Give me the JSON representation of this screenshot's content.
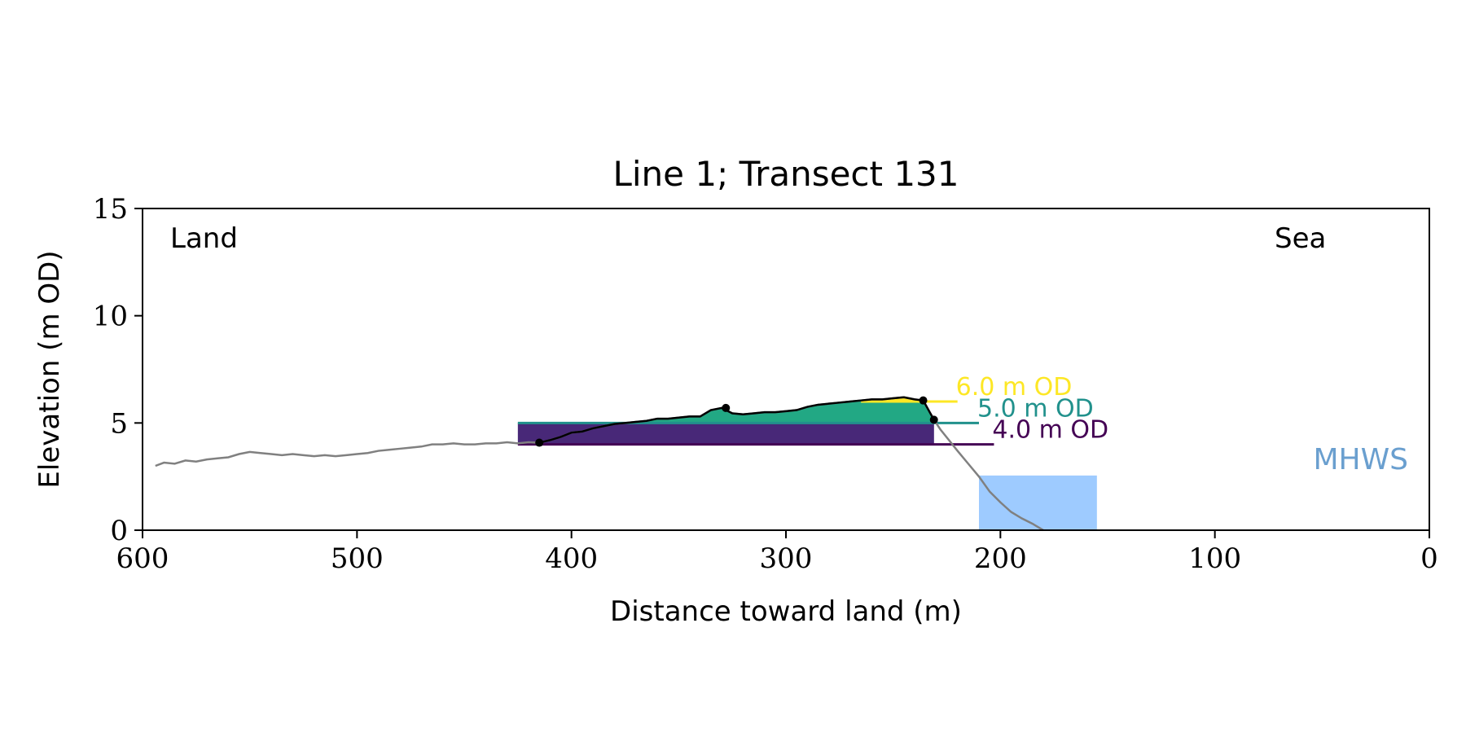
{
  "chart_data": {
    "type": "area",
    "title": "Line 1; Transect 131",
    "xlabel": "Distance toward land (m)",
    "ylabel": "Elevation (m OD)",
    "xlim": [
      600,
      0
    ],
    "ylim": [
      0,
      15
    ],
    "x_ticks": [
      "600",
      "500",
      "400",
      "300",
      "200",
      "100",
      "0"
    ],
    "y_ticks": [
      "0",
      "5",
      "10",
      "15"
    ],
    "grid": false,
    "legend": "none",
    "annotations": {
      "left": "Land",
      "right": "Sea",
      "mhws": "MHWS"
    },
    "profile": {
      "x": [
        594,
        590,
        585,
        580,
        575,
        570,
        565,
        560,
        555,
        550,
        545,
        540,
        535,
        530,
        525,
        520,
        515,
        510,
        505,
        500,
        495,
        490,
        485,
        480,
        475,
        470,
        465,
        460,
        455,
        450,
        445,
        440,
        435,
        430,
        425,
        420,
        415,
        410,
        405,
        400,
        395,
        390,
        385,
        380,
        375,
        370,
        365,
        360,
        355,
        350,
        345,
        340,
        335,
        330,
        325,
        320,
        315,
        310,
        305,
        300,
        295,
        290,
        285,
        280,
        275,
        270,
        265,
        260,
        255,
        250,
        245,
        240,
        236,
        231,
        228,
        224,
        220,
        215,
        210,
        205,
        200,
        195,
        190,
        185,
        180
      ],
      "y": [
        3.0,
        3.15,
        3.1,
        3.25,
        3.2,
        3.3,
        3.35,
        3.4,
        3.55,
        3.65,
        3.6,
        3.55,
        3.5,
        3.55,
        3.5,
        3.45,
        3.5,
        3.45,
        3.5,
        3.55,
        3.6,
        3.7,
        3.75,
        3.8,
        3.85,
        3.9,
        4.0,
        4.0,
        4.05,
        4.0,
        4.0,
        4.05,
        4.05,
        4.1,
        4.05,
        4.1,
        4.08,
        4.2,
        4.35,
        4.55,
        4.6,
        4.75,
        4.85,
        4.95,
        5.0,
        5.05,
        5.1,
        5.2,
        5.2,
        5.25,
        5.3,
        5.3,
        5.6,
        5.7,
        5.45,
        5.4,
        5.45,
        5.5,
        5.5,
        5.55,
        5.6,
        5.75,
        5.85,
        5.9,
        5.95,
        6.0,
        6.05,
        6.1,
        6.1,
        6.15,
        6.2,
        6.1,
        6.05,
        5.15,
        4.7,
        4.2,
        3.7,
        3.1,
        2.5,
        1.8,
        1.3,
        0.85,
        0.55,
        0.3,
        0.0
      ]
    },
    "dune_crest": {
      "x": [
        415,
        410,
        405,
        400,
        395,
        390,
        385,
        380,
        375,
        370,
        365,
        360,
        355,
        350,
        345,
        340,
        335,
        330,
        325,
        320,
        315,
        310,
        305,
        300,
        295,
        290,
        285,
        280,
        275,
        270,
        265,
        260,
        255,
        250,
        245,
        240,
        236,
        231
      ],
      "y": [
        4.08,
        4.2,
        4.35,
        4.55,
        4.6,
        4.75,
        4.85,
        4.95,
        5.0,
        5.05,
        5.1,
        5.2,
        5.2,
        5.25,
        5.3,
        5.3,
        5.6,
        5.7,
        5.45,
        5.4,
        5.45,
        5.5,
        5.5,
        5.55,
        5.6,
        5.75,
        5.85,
        5.9,
        5.95,
        6.0,
        6.05,
        6.1,
        6.1,
        6.15,
        6.2,
        6.1,
        6.05,
        5.15
      ]
    },
    "key_points": [
      {
        "x": 415,
        "y": 4.08
      },
      {
        "x": 328,
        "y": 5.7
      },
      {
        "x": 236,
        "y": 6.05
      },
      {
        "x": 231,
        "y": 5.15
      }
    ],
    "levels": [
      {
        "label": "6.0 m OD",
        "value": 6.0,
        "x_start": 265,
        "x_end": 220,
        "color": "#fde725"
      },
      {
        "label": "5.0 m OD",
        "value": 5.0,
        "x_start": 425,
        "x_end": 210,
        "color": "#21918c"
      },
      {
        "label": "4.0 m OD",
        "value": 4.0,
        "x_start": 425,
        "x_end": 203,
        "color": "#440154"
      }
    ],
    "mhws": {
      "value": 2.55,
      "x_from": 210,
      "x_to": 155,
      "color": "#9ecbff",
      "label_color": "#6a9fcf"
    },
    "band_colors": {
      "below_4": "#3b0f70",
      "4_to_5": "#482878",
      "5_to_6": "#22a884",
      "above_6": "#fde725"
    }
  }
}
